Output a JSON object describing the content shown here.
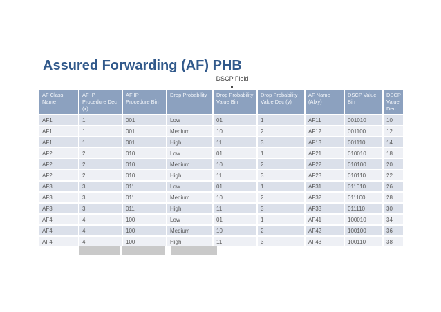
{
  "title": "Assured Forwarding (AF) PHB",
  "dscp_field_label": "DSCP Field",
  "colors": {
    "title": "#31598B",
    "header_bg": "#8CA1BF",
    "header_text": "#F3F6FA",
    "row_odd": "#DBE0EA",
    "row_even": "#EEF0F5",
    "cell_text": "#585858",
    "placeholder_bar": "#C9C9C9"
  },
  "table": {
    "headers": [
      "AF Class Name",
      "AF IP Procedure Dec (x)",
      "AF IP Procedure Bin",
      "Drop Probability",
      "Drop Probability Value Bin",
      "Drop Probability Value Dec (y)",
      "AF Name (Afxy)",
      "DSCP Value Bin",
      "DSCP Value Dec"
    ],
    "rows": [
      [
        "AF1",
        "1",
        "001",
        "Low",
        "01",
        "1",
        "AF11",
        "001010",
        "10"
      ],
      [
        "AF1",
        "1",
        "001",
        "Medium",
        "10",
        "2",
        "AF12",
        "001100",
        "12"
      ],
      [
        "AF1",
        "1",
        "001",
        "High",
        "11",
        "3",
        "AF13",
        "001110",
        "14"
      ],
      [
        "AF2",
        "2",
        "010",
        "Low",
        "01",
        "1",
        "AF21",
        "010010",
        "18"
      ],
      [
        "AF2",
        "2",
        "010",
        "Medium",
        "10",
        "2",
        "AF22",
        "010100",
        "20"
      ],
      [
        "AF2",
        "2",
        "010",
        "High",
        "11",
        "3",
        "AF23",
        "010110",
        "22"
      ],
      [
        "AF3",
        "3",
        "011",
        "Low",
        "01",
        "1",
        "AF31",
        "011010",
        "26"
      ],
      [
        "AF3",
        "3",
        "011",
        "Medium",
        "10",
        "2",
        "AF32",
        "011100",
        "28"
      ],
      [
        "AF3",
        "3",
        "011",
        "High",
        "11",
        "3",
        "AF33",
        "011110",
        "30"
      ],
      [
        "AF4",
        "4",
        "100",
        "Low",
        "01",
        "1",
        "AF41",
        "100010",
        "34"
      ],
      [
        "AF4",
        "4",
        "100",
        "Medium",
        "10",
        "2",
        "AF42",
        "100100",
        "36"
      ],
      [
        "AF4",
        "4",
        "100",
        "High",
        "11",
        "3",
        "AF43",
        "100110",
        "38"
      ]
    ]
  }
}
